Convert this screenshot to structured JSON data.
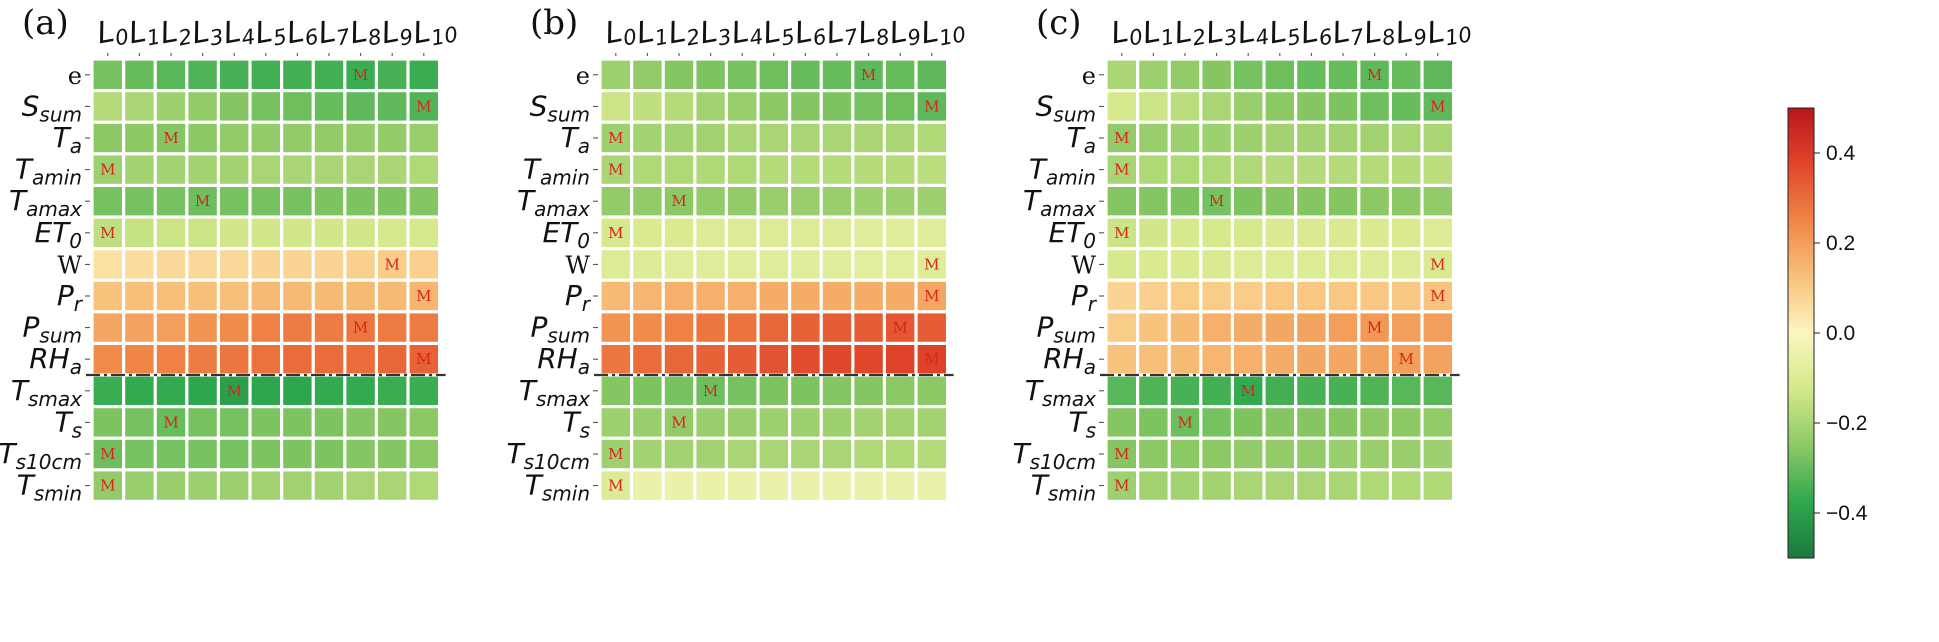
{
  "chart_data": [
    {
      "type": "heatmap",
      "panel_label": "(a)",
      "columns": [
        "L0",
        "L1",
        "L2",
        "L3",
        "L4",
        "L5",
        "L6",
        "L7",
        "L8",
        "L9",
        "L10"
      ],
      "rows": [
        "e",
        "Ssum",
        "Ta",
        "Tamin",
        "Tamax",
        "ET0",
        "W",
        "Pr",
        "Psum",
        "RHa",
        "Tsmax",
        "Ts",
        "Ts10cm",
        "Tsmin"
      ],
      "values": [
        [
          -0.28,
          -0.3,
          -0.32,
          -0.33,
          -0.34,
          -0.35,
          -0.35,
          -0.35,
          -0.36,
          -0.34,
          -0.36
        ],
        [
          -0.18,
          -0.2,
          -0.22,
          -0.24,
          -0.26,
          -0.28,
          -0.29,
          -0.3,
          -0.31,
          -0.31,
          -0.33
        ],
        [
          -0.25,
          -0.25,
          -0.26,
          -0.25,
          -0.24,
          -0.24,
          -0.24,
          -0.24,
          -0.24,
          -0.24,
          -0.23
        ],
        [
          -0.22,
          -0.21,
          -0.21,
          -0.21,
          -0.21,
          -0.2,
          -0.2,
          -0.2,
          -0.2,
          -0.2,
          -0.19
        ],
        [
          -0.28,
          -0.28,
          -0.28,
          -0.29,
          -0.28,
          -0.28,
          -0.28,
          -0.27,
          -0.27,
          -0.27,
          -0.26
        ],
        [
          -0.16,
          -0.15,
          -0.14,
          -0.14,
          -0.13,
          -0.13,
          -0.13,
          -0.13,
          -0.13,
          -0.12,
          -0.12
        ],
        [
          0.05,
          0.06,
          0.07,
          0.07,
          0.07,
          0.08,
          0.08,
          0.08,
          0.09,
          0.1,
          0.09
        ],
        [
          0.12,
          0.13,
          0.13,
          0.13,
          0.13,
          0.14,
          0.14,
          0.14,
          0.14,
          0.14,
          0.15
        ],
        [
          0.18,
          0.19,
          0.2,
          0.22,
          0.24,
          0.26,
          0.27,
          0.27,
          0.28,
          0.27,
          0.27
        ],
        [
          0.24,
          0.25,
          0.26,
          0.27,
          0.28,
          0.29,
          0.3,
          0.3,
          0.3,
          0.31,
          0.32
        ],
        [
          -0.36,
          -0.37,
          -0.37,
          -0.38,
          -0.4,
          -0.38,
          -0.38,
          -0.37,
          -0.37,
          -0.36,
          -0.36
        ],
        [
          -0.27,
          -0.28,
          -0.3,
          -0.28,
          -0.28,
          -0.27,
          -0.27,
          -0.27,
          -0.26,
          -0.26,
          -0.25
        ],
        [
          -0.29,
          -0.28,
          -0.28,
          -0.28,
          -0.28,
          -0.27,
          -0.27,
          -0.27,
          -0.26,
          -0.26,
          -0.25
        ],
        [
          -0.24,
          -0.23,
          -0.23,
          -0.22,
          -0.22,
          -0.21,
          -0.21,
          -0.21,
          -0.2,
          -0.2,
          -0.19
        ]
      ],
      "markers": [
        [
          0,
          8
        ],
        [
          1,
          10
        ],
        [
          2,
          2
        ],
        [
          3,
          0
        ],
        [
          4,
          3
        ],
        [
          5,
          0
        ],
        [
          6,
          9
        ],
        [
          7,
          10
        ],
        [
          8,
          8
        ],
        [
          9,
          10
        ],
        [
          10,
          4
        ],
        [
          11,
          2
        ],
        [
          12,
          0
        ],
        [
          13,
          0
        ]
      ],
      "divider_after_row": 9
    },
    {
      "type": "heatmap",
      "panel_label": "(b)",
      "columns": [
        "L0",
        "L1",
        "L2",
        "L3",
        "L4",
        "L5",
        "L6",
        "L7",
        "L8",
        "L9",
        "L10"
      ],
      "rows": [
        "e",
        "Ssum",
        "Ta",
        "Tamin",
        "Tamax",
        "ET0",
        "W",
        "Pr",
        "Psum",
        "RHa",
        "Tsmax",
        "Ts",
        "Ts10cm",
        "Tsmin"
      ],
      "values": [
        [
          -0.22,
          -0.24,
          -0.26,
          -0.27,
          -0.28,
          -0.29,
          -0.3,
          -0.3,
          -0.31,
          -0.3,
          -0.31
        ],
        [
          -0.14,
          -0.16,
          -0.18,
          -0.21,
          -0.23,
          -0.25,
          -0.26,
          -0.27,
          -0.28,
          -0.29,
          -0.31
        ],
        [
          -0.22,
          -0.21,
          -0.21,
          -0.21,
          -0.2,
          -0.2,
          -0.2,
          -0.2,
          -0.2,
          -0.2,
          -0.19
        ],
        [
          -0.2,
          -0.19,
          -0.19,
          -0.19,
          -0.19,
          -0.18,
          -0.18,
          -0.18,
          -0.18,
          -0.18,
          -0.17
        ],
        [
          -0.24,
          -0.24,
          -0.25,
          -0.24,
          -0.24,
          -0.23,
          -0.23,
          -0.23,
          -0.22,
          -0.22,
          -0.22
        ],
        [
          -0.12,
          -0.11,
          -0.11,
          -0.1,
          -0.1,
          -0.1,
          -0.1,
          -0.1,
          -0.09,
          -0.09,
          -0.09
        ],
        [
          -0.1,
          -0.1,
          -0.09,
          -0.09,
          -0.09,
          -0.09,
          -0.09,
          -0.09,
          -0.08,
          -0.08,
          -0.09
        ],
        [
          0.14,
          0.15,
          0.16,
          0.16,
          0.16,
          0.17,
          0.17,
          0.17,
          0.17,
          0.17,
          0.18
        ],
        [
          0.22,
          0.24,
          0.26,
          0.28,
          0.29,
          0.31,
          0.32,
          0.33,
          0.33,
          0.34,
          0.33
        ],
        [
          0.28,
          0.3,
          0.31,
          0.32,
          0.33,
          0.35,
          0.36,
          0.37,
          0.37,
          0.38,
          0.38
        ],
        [
          -0.26,
          -0.27,
          -0.28,
          -0.29,
          -0.28,
          -0.27,
          -0.27,
          -0.26,
          -0.26,
          -0.25,
          -0.25
        ],
        [
          -0.22,
          -0.23,
          -0.24,
          -0.23,
          -0.23,
          -0.22,
          -0.22,
          -0.22,
          -0.21,
          -0.21,
          -0.21
        ],
        [
          -0.22,
          -0.21,
          -0.21,
          -0.21,
          -0.2,
          -0.2,
          -0.2,
          -0.2,
          -0.19,
          -0.19,
          -0.18
        ],
        [
          -0.1,
          -0.05,
          -0.05,
          -0.05,
          -0.05,
          -0.05,
          -0.05,
          -0.05,
          -0.05,
          -0.05,
          -0.05
        ]
      ],
      "markers": [
        [
          0,
          8
        ],
        [
          1,
          10
        ],
        [
          2,
          0
        ],
        [
          3,
          0
        ],
        [
          4,
          2
        ],
        [
          5,
          0
        ],
        [
          6,
          10
        ],
        [
          7,
          10
        ],
        [
          8,
          9
        ],
        [
          9,
          10
        ],
        [
          10,
          3
        ],
        [
          11,
          2
        ],
        [
          12,
          0
        ],
        [
          13,
          0
        ]
      ],
      "divider_after_row": 9
    },
    {
      "type": "heatmap",
      "panel_label": "(c)",
      "columns": [
        "L0",
        "L1",
        "L2",
        "L3",
        "L4",
        "L5",
        "L6",
        "L7",
        "L8",
        "L9",
        "L10"
      ],
      "rows": [
        "e",
        "Ssum",
        "Ta",
        "Tamin",
        "Tamax",
        "ET0",
        "W",
        "Pr",
        "Psum",
        "RHa",
        "Tsmax",
        "Ts",
        "Ts10cm",
        "Tsmin"
      ],
      "values": [
        [
          -0.2,
          -0.22,
          -0.24,
          -0.26,
          -0.28,
          -0.29,
          -0.3,
          -0.3,
          -0.31,
          -0.3,
          -0.31
        ],
        [
          -0.12,
          -0.14,
          -0.17,
          -0.2,
          -0.23,
          -0.25,
          -0.26,
          -0.27,
          -0.29,
          -0.3,
          -0.31
        ],
        [
          -0.24,
          -0.23,
          -0.22,
          -0.22,
          -0.22,
          -0.21,
          -0.21,
          -0.21,
          -0.21,
          -0.2,
          -0.2
        ],
        [
          -0.2,
          -0.19,
          -0.19,
          -0.19,
          -0.19,
          -0.18,
          -0.18,
          -0.18,
          -0.18,
          -0.18,
          -0.17
        ],
        [
          -0.26,
          -0.26,
          -0.27,
          -0.28,
          -0.27,
          -0.26,
          -0.26,
          -0.26,
          -0.25,
          -0.25,
          -0.24
        ],
        [
          -0.14,
          -0.13,
          -0.12,
          -0.12,
          -0.12,
          -0.11,
          -0.11,
          -0.11,
          -0.11,
          -0.11,
          -0.1
        ],
        [
          -0.12,
          -0.11,
          -0.11,
          -0.11,
          -0.1,
          -0.1,
          -0.1,
          -0.1,
          -0.1,
          -0.1,
          -0.11
        ],
        [
          0.08,
          0.09,
          0.1,
          0.1,
          0.1,
          0.11,
          0.11,
          0.11,
          0.11,
          0.11,
          0.12
        ],
        [
          0.1,
          0.12,
          0.14,
          0.16,
          0.17,
          0.18,
          0.19,
          0.2,
          0.21,
          0.2,
          0.2
        ],
        [
          0.12,
          0.13,
          0.14,
          0.15,
          0.16,
          0.17,
          0.18,
          0.18,
          0.19,
          0.2,
          0.19
        ],
        [
          -0.32,
          -0.33,
          -0.34,
          -0.35,
          -0.37,
          -0.35,
          -0.34,
          -0.34,
          -0.33,
          -0.32,
          -0.32
        ],
        [
          -0.26,
          -0.27,
          -0.29,
          -0.28,
          -0.27,
          -0.26,
          -0.26,
          -0.26,
          -0.25,
          -0.25,
          -0.24
        ],
        [
          -0.26,
          -0.25,
          -0.25,
          -0.25,
          -0.24,
          -0.24,
          -0.24,
          -0.23,
          -0.23,
          -0.23,
          -0.22
        ],
        [
          -0.22,
          -0.21,
          -0.21,
          -0.21,
          -0.2,
          -0.2,
          -0.2,
          -0.2,
          -0.19,
          -0.19,
          -0.19
        ]
      ],
      "markers": [
        [
          0,
          8
        ],
        [
          1,
          10
        ],
        [
          2,
          0
        ],
        [
          3,
          0
        ],
        [
          4,
          3
        ],
        [
          5,
          0
        ],
        [
          6,
          10
        ],
        [
          7,
          10
        ],
        [
          8,
          8
        ],
        [
          9,
          9
        ],
        [
          10,
          4
        ],
        [
          11,
          2
        ],
        [
          12,
          0
        ],
        [
          13,
          0
        ]
      ],
      "divider_after_row": 9
    }
  ],
  "marker_text": "M",
  "colorbar": {
    "vmin": -0.5,
    "vmax": 0.5,
    "ticks": [
      0.4,
      0.2,
      0.0,
      -0.2,
      -0.4
    ],
    "tick_labels": [
      "0.4",
      "0.2",
      "0.0",
      "−0.2",
      "−0.4"
    ],
    "colors": [
      "#1a7a3c",
      "#2fa84f",
      "#8cc965",
      "#d4e88a",
      "#fbf6c0",
      "#f8c17a",
      "#f08646",
      "#e0452a",
      "#b8171e"
    ]
  }
}
